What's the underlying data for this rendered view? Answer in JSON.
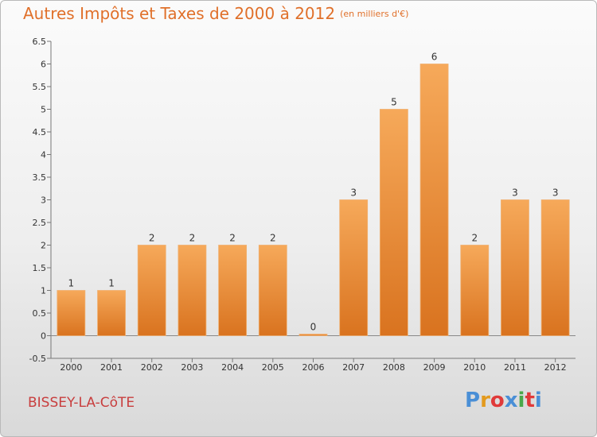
{
  "title": "Autres Impôts et Taxes de 2000 à 2012",
  "unit_note": "(en milliers d'€)",
  "commune": "BISSEY-LA-CôTE",
  "logo": {
    "letters": [
      "P",
      "r",
      "o",
      "x",
      "i",
      "t",
      "i"
    ],
    "colors": [
      "#4a8fd6",
      "#e39a1e",
      "#e03a3a",
      "#4a8fd6",
      "#4aa84a",
      "#e03a3a",
      "#4a8fd6"
    ]
  },
  "colors": {
    "bar_light": "#f6a95a",
    "bar_dark": "#d9731f",
    "title": "#e0702a",
    "commune": "#c83e3e"
  },
  "chart_data": {
    "type": "bar",
    "title": "Autres Impôts et Taxes de 2000 à 2012",
    "subtitle": "(en milliers d'€)",
    "categories": [
      "2000",
      "2001",
      "2002",
      "2003",
      "2004",
      "2005",
      "2006",
      "2007",
      "2008",
      "2009",
      "2010",
      "2011",
      "2012"
    ],
    "values": [
      1,
      1,
      2,
      2,
      2,
      2,
      0,
      3,
      5,
      6,
      2,
      3,
      3
    ],
    "data_labels": [
      "1",
      "1",
      "2",
      "2",
      "2",
      "2",
      "0",
      "3",
      "5",
      "6",
      "2",
      "3",
      "3"
    ],
    "ylim": [
      -0.5,
      6.5
    ],
    "yticks": [
      "-0.5",
      "0",
      "0.5",
      "1",
      "1.5",
      "2",
      "2.5",
      "3",
      "3.5",
      "4",
      "4.5",
      "5",
      "5.5",
      "6",
      "6.5"
    ],
    "grid": false
  }
}
